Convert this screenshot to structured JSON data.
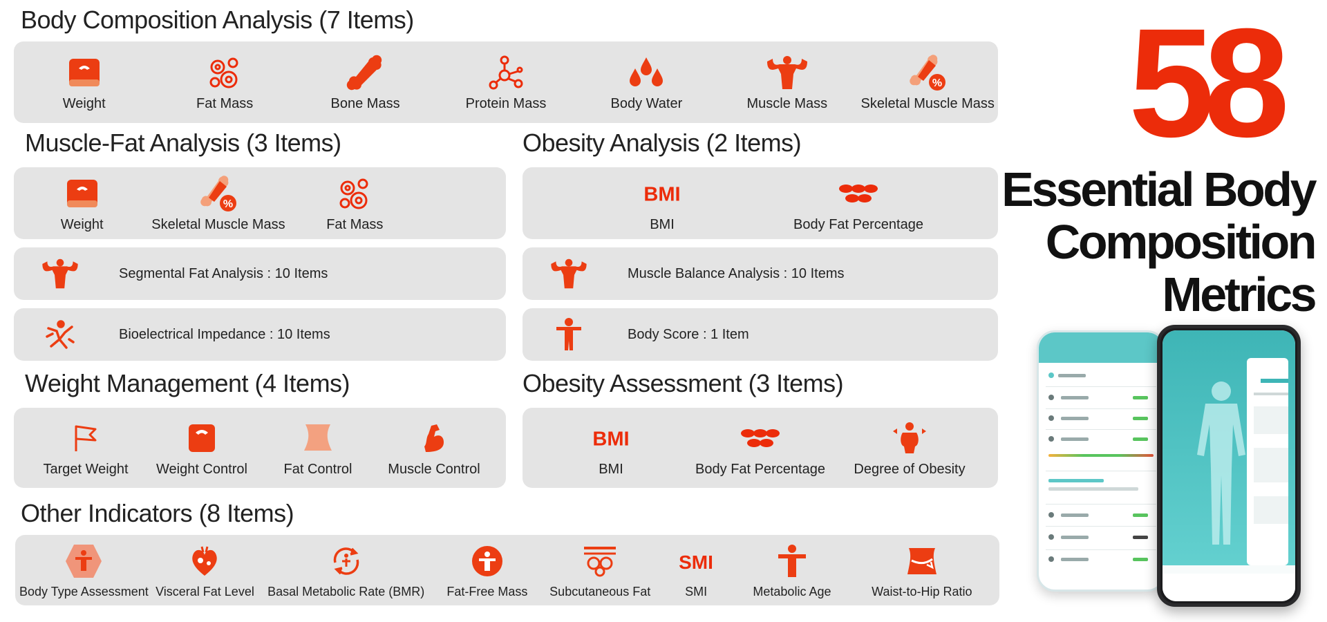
{
  "headline": {
    "number": "58",
    "title_lines": [
      "Essential Body",
      "Composition",
      "Metrics"
    ],
    "accent": "#ec2c0a"
  },
  "sections": {
    "body_composition": {
      "title": "Body Composition Analysis (7 Items)",
      "items": [
        {
          "label": "Weight",
          "icon": "scale-icon"
        },
        {
          "label": "Fat Mass",
          "icon": "fat-cells-icon"
        },
        {
          "label": "Bone Mass",
          "icon": "bone-icon"
        },
        {
          "label": "Protein Mass",
          "icon": "molecule-icon"
        },
        {
          "label": "Body Water",
          "icon": "water-drops-icon"
        },
        {
          "label": "Muscle Mass",
          "icon": "muscle-torso-icon"
        },
        {
          "label": "Skeletal Muscle Mass",
          "icon": "bone-percent-icon"
        }
      ]
    },
    "muscle_fat": {
      "title": "Muscle-Fat Analysis (3 Items)",
      "items": [
        {
          "label": "Weight",
          "icon": "scale-icon"
        },
        {
          "label": "Skeletal Muscle Mass",
          "icon": "bone-percent-icon"
        },
        {
          "label": "Fat Mass",
          "icon": "fat-cells-icon"
        }
      ],
      "rows": [
        {
          "label": "Segmental Fat Analysis : 10 Items",
          "icon": "muscle-torso-icon"
        },
        {
          "label": "Bioelectrical Impedance : 10 Items",
          "icon": "impedance-body-icon"
        }
      ]
    },
    "obesity_analysis": {
      "title": "Obesity Analysis (2 Items)",
      "items": [
        {
          "label": "BMI",
          "icon": "bmi-icon",
          "icon_text": "BMI"
        },
        {
          "label": "Body Fat Percentage",
          "icon": "fat-cells-row-icon"
        }
      ],
      "rows": [
        {
          "label": "Muscle Balance Analysis : 10 Items",
          "icon": "muscle-torso-icon"
        },
        {
          "label": "Body Score : 1 Item",
          "icon": "person-icon"
        }
      ]
    },
    "weight_management": {
      "title": "Weight Management (4 Items)",
      "items": [
        {
          "label": "Target Weight",
          "icon": "flag-icon"
        },
        {
          "label": "Weight Control",
          "icon": "scale-icon"
        },
        {
          "label": "Fat Control",
          "icon": "waist-icon"
        },
        {
          "label": "Muscle Control",
          "icon": "bicep-icon"
        }
      ]
    },
    "obesity_assessment": {
      "title": "Obesity Assessment (3 Items)",
      "items": [
        {
          "label": "BMI",
          "icon": "bmi-icon",
          "icon_text": "BMI"
        },
        {
          "label": "Body Fat Percentage",
          "icon": "fat-cells-row-icon"
        },
        {
          "label": "Degree of Obesity",
          "icon": "obesity-figure-icon"
        }
      ]
    },
    "other_indicators": {
      "title": "Other Indicators (8 Items)",
      "items": [
        {
          "label": "Body Type Assessment",
          "icon": "body-type-hexagon-icon"
        },
        {
          "label": "Visceral Fat Level",
          "icon": "heart-organ-icon"
        },
        {
          "label": "Basal Metabolic Rate (BMR)",
          "icon": "metabolic-cycle-icon"
        },
        {
          "label": "Fat-Free Mass",
          "icon": "fat-free-circle-icon"
        },
        {
          "label": "Subcutaneous Fat",
          "icon": "subcutaneous-fat-icon"
        },
        {
          "label": "SMI",
          "icon": "smi-icon",
          "icon_text": "SMI"
        },
        {
          "label": "Metabolic Age",
          "icon": "person-icon"
        },
        {
          "label": "Waist-to-Hip Ratio",
          "icon": "waist-hip-icon"
        }
      ]
    }
  }
}
